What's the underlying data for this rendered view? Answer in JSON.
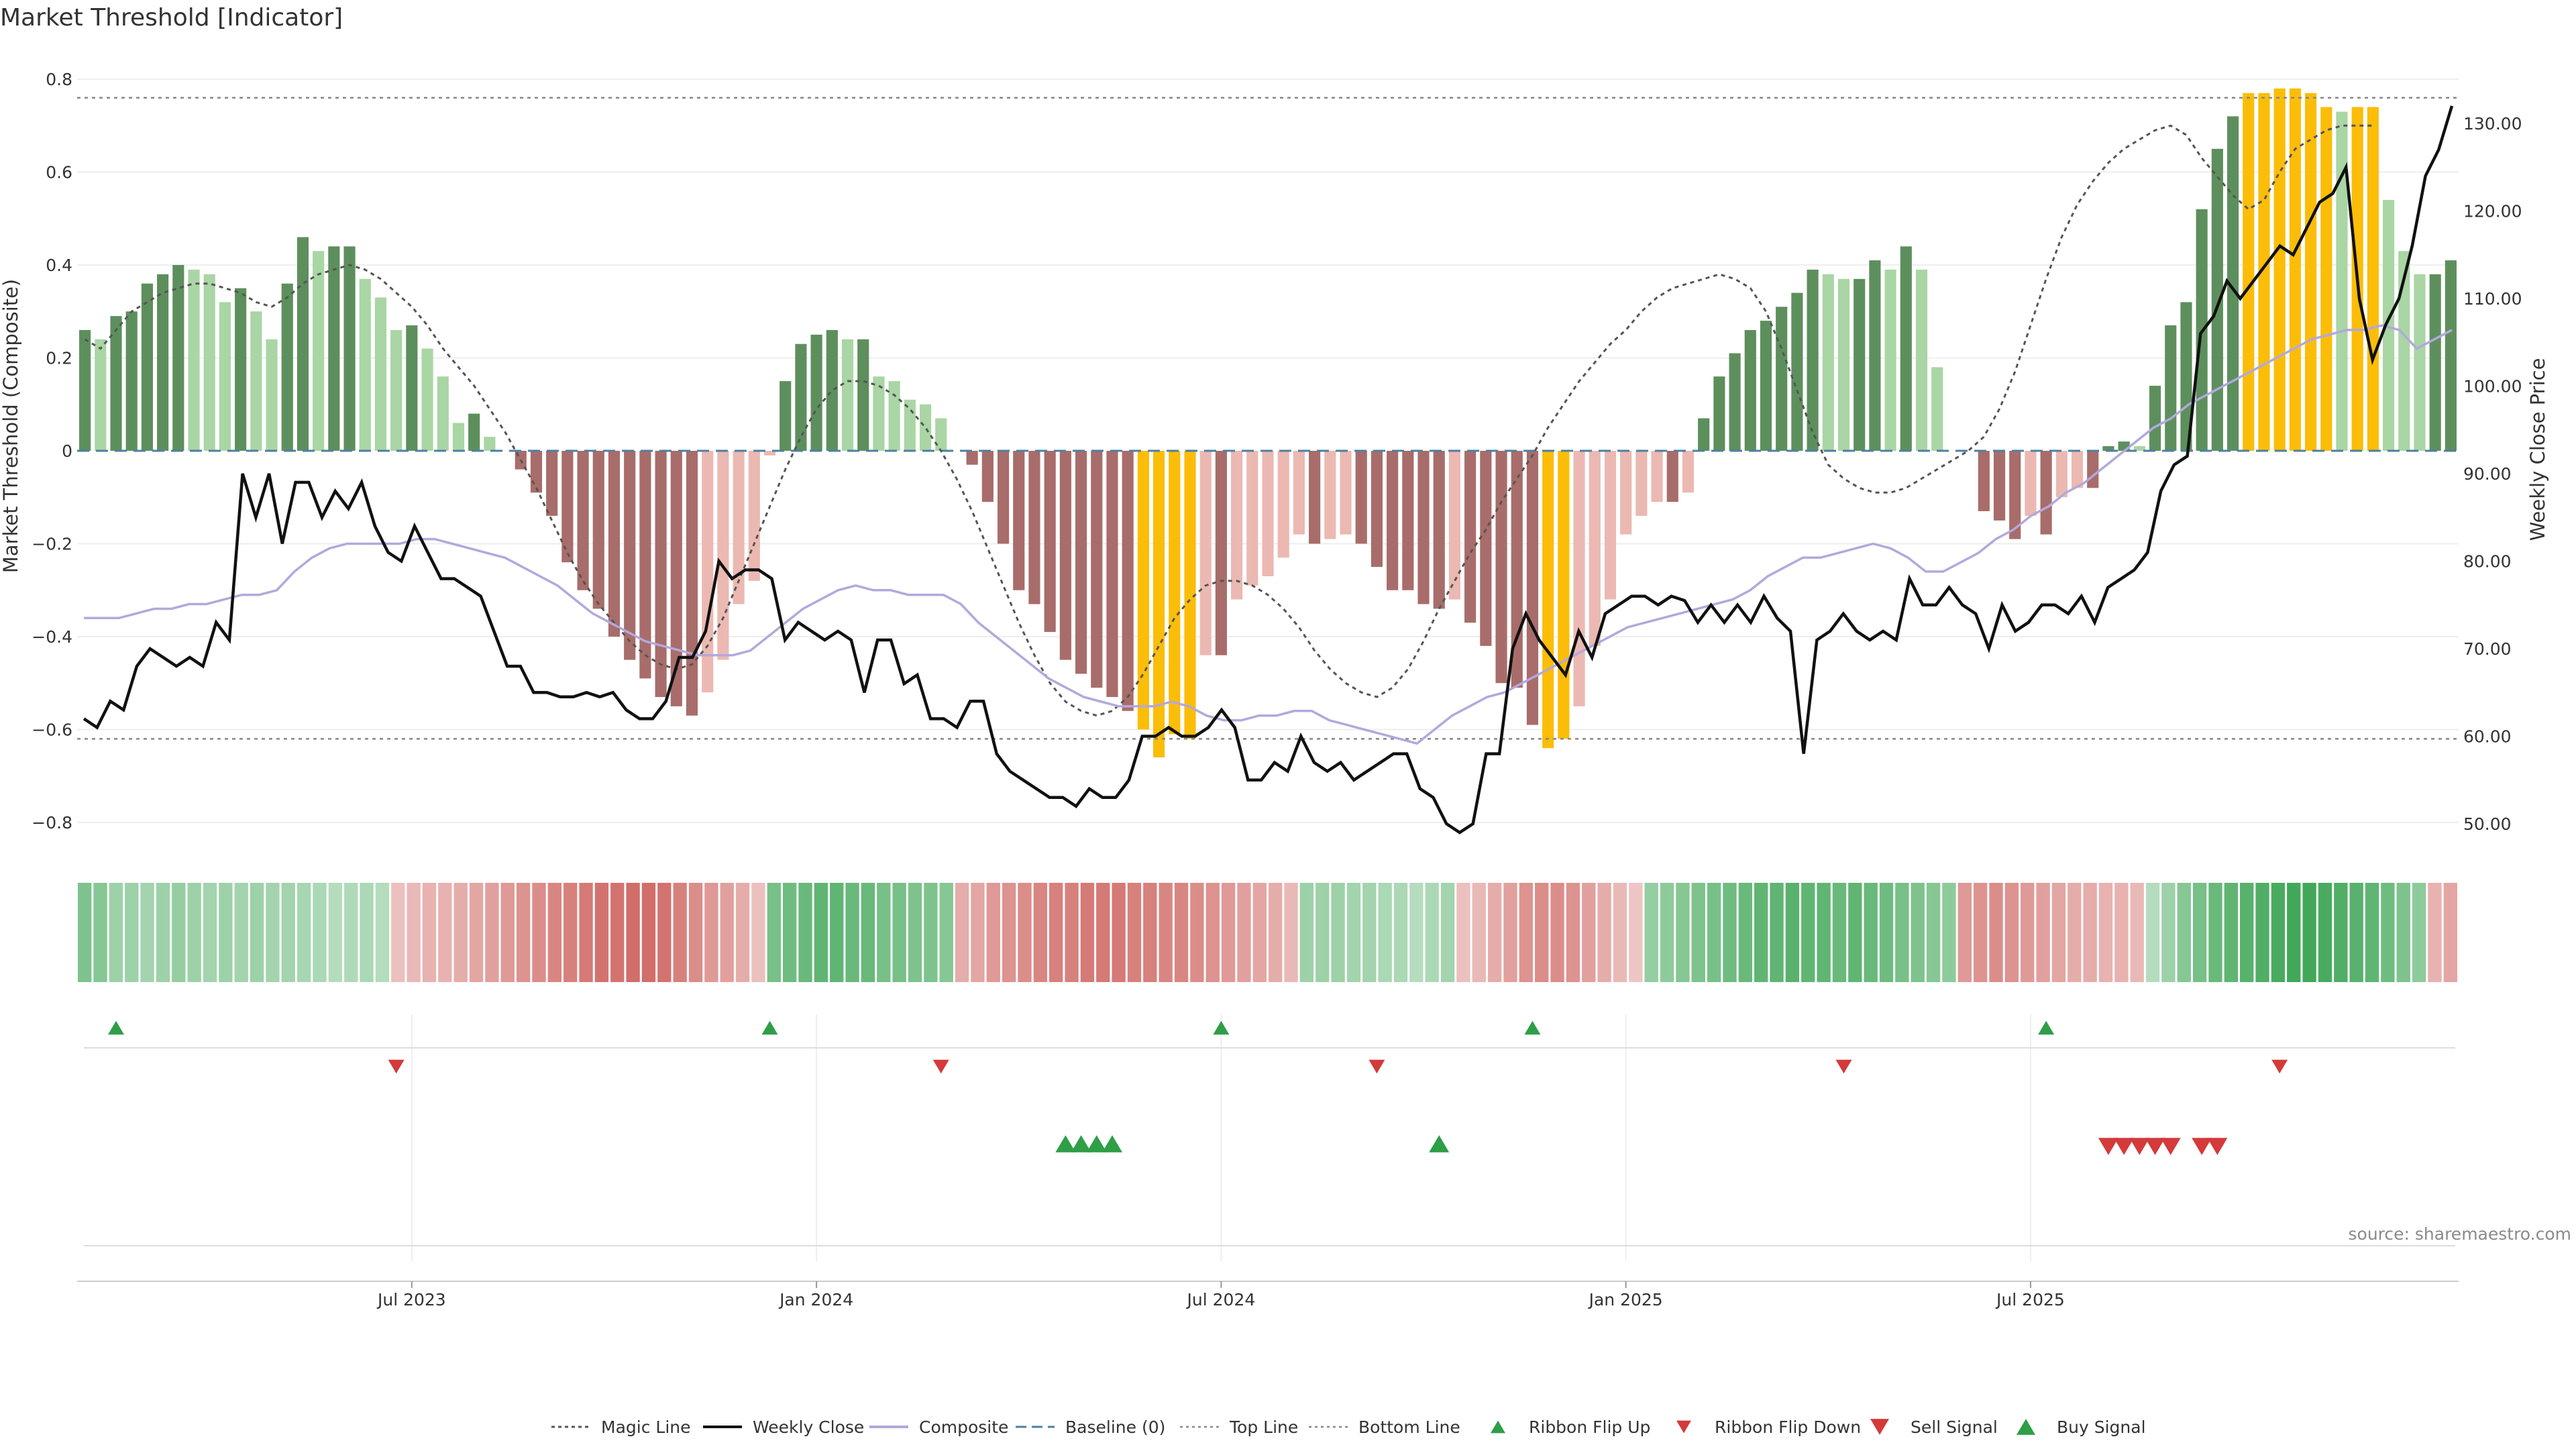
{
  "colors": {
    "bar_pos_strong": "#5d8f5d",
    "bar_pos_light": "#a9d6a4",
    "bar_neg_strong": "#a86d6a",
    "bar_neg_light": "#ebb9b2",
    "bar_extreme": "#fbbd08",
    "close_line": "#111111",
    "composite_line": "#b3a8dc",
    "magic_line": "#555555",
    "baseline": "#4e7fa0",
    "threshold": "#888888",
    "buy": "#2e9e47",
    "sell": "#d43a3a"
  },
  "chart_data": {
    "type": "bar",
    "title": "Market Threshold [Indicator]",
    "ylabel": "Market Threshold (Composite)",
    "y2label": "Weekly Close Price",
    "ylim": [
      -0.8,
      0.8
    ],
    "y2lim": [
      50,
      130
    ],
    "yticks": [
      "−0.8",
      "−0.6",
      "−0.4",
      "−0.2",
      "0",
      "0.2",
      "0.4",
      "0.6",
      "0.8"
    ],
    "y2ticks": [
      "50.00",
      "60.00",
      "70.00",
      "80.00",
      "90.00",
      "100.00",
      "110.00",
      "120.00",
      "130.00"
    ],
    "xticks": [
      "Jul 2023",
      "Jan 2024",
      "Jul 2024",
      "Jan 2025",
      "Jul 2025"
    ],
    "top_line": 0.76,
    "bottom_line": -0.62,
    "baseline": 0,
    "composite": [
      0.26,
      0.24,
      0.29,
      0.3,
      0.36,
      0.38,
      0.4,
      0.39,
      0.38,
      0.32,
      0.35,
      0.3,
      0.24,
      0.36,
      0.46,
      0.43,
      0.44,
      0.44,
      0.37,
      0.33,
      0.26,
      0.27,
      0.22,
      0.16,
      0.06,
      0.08,
      0.03,
      0,
      -0.04,
      -0.09,
      -0.14,
      -0.24,
      -0.3,
      -0.34,
      -0.4,
      -0.45,
      -0.49,
      -0.53,
      -0.55,
      -0.57,
      -0.52,
      -0.45,
      -0.33,
      -0.28,
      -0.01,
      0.15,
      0.23,
      0.25,
      0.26,
      0.24,
      0.24,
      0.16,
      0.15,
      0.11,
      0.1,
      0.07,
      0,
      -0.03,
      -0.11,
      -0.2,
      -0.3,
      -0.33,
      -0.39,
      -0.45,
      -0.48,
      -0.51,
      -0.53,
      -0.56,
      -0.6,
      -0.66,
      -0.61,
      -0.62,
      -0.44,
      -0.44,
      -0.32,
      -0.29,
      -0.27,
      -0.23,
      -0.18,
      -0.2,
      -0.19,
      -0.18,
      -0.2,
      -0.25,
      -0.3,
      -0.3,
      -0.33,
      -0.34,
      -0.32,
      -0.37,
      -0.42,
      -0.5,
      -0.51,
      -0.59,
      -0.64,
      -0.62,
      -0.55,
      -0.42,
      -0.32,
      -0.18,
      -0.14,
      -0.11,
      -0.11,
      -0.09,
      0.07,
      0.16,
      0.21,
      0.26,
      0.28,
      0.31,
      0.34,
      0.39,
      0.38,
      0.37,
      0.37,
      0.41,
      0.39,
      0.44,
      0.39,
      0.18,
      0,
      0,
      -0.13,
      -0.15,
      -0.19,
      -0.14,
      -0.18,
      -0.1,
      -0.08,
      -0.08,
      0.01,
      0.02,
      0.01,
      0.14,
      0.27,
      0.32,
      0.52,
      0.65,
      0.72,
      0.77,
      0.77,
      0.78,
      0.78,
      0.77,
      0.74,
      0.73,
      0.74,
      0.74,
      0.54,
      0.43,
      0.38,
      0.38,
      0.41
    ],
    "magic_line": [
      0.24,
      0.22,
      0.26,
      0.3,
      0.32,
      0.34,
      0.35,
      0.36,
      0.36,
      0.35,
      0.34,
      0.32,
      0.31,
      0.33,
      0.36,
      0.38,
      0.39,
      0.4,
      0.39,
      0.37,
      0.34,
      0.31,
      0.27,
      0.22,
      0.18,
      0.14,
      0.09,
      0.04,
      -0.02,
      -0.08,
      -0.15,
      -0.22,
      -0.28,
      -0.33,
      -0.37,
      -0.41,
      -0.44,
      -0.46,
      -0.47,
      -0.46,
      -0.42,
      -0.36,
      -0.28,
      -0.2,
      -0.12,
      -0.04,
      0.03,
      0.09,
      0.13,
      0.15,
      0.15,
      0.14,
      0.12,
      0.09,
      0.05,
      0,
      -0.06,
      -0.13,
      -0.21,
      -0.29,
      -0.37,
      -0.44,
      -0.5,
      -0.54,
      -0.56,
      -0.57,
      -0.56,
      -0.53,
      -0.48,
      -0.42,
      -0.36,
      -0.32,
      -0.29,
      -0.28,
      -0.28,
      -0.29,
      -0.31,
      -0.34,
      -0.38,
      -0.43,
      -0.47,
      -0.5,
      -0.52,
      -0.53,
      -0.51,
      -0.47,
      -0.41,
      -0.34,
      -0.28,
      -0.22,
      -0.17,
      -0.11,
      -0.06,
      -0.01,
      0.05,
      0.1,
      0.15,
      0.19,
      0.23,
      0.26,
      0.3,
      0.33,
      0.35,
      0.36,
      0.37,
      0.38,
      0.37,
      0.35,
      0.3,
      0.22,
      0.13,
      0.04,
      -0.03,
      -0.06,
      -0.08,
      -0.09,
      -0.09,
      -0.08,
      -0.06,
      -0.04,
      -0.02,
      0,
      0.03,
      0.09,
      0.17,
      0.27,
      0.37,
      0.46,
      0.53,
      0.58,
      0.62,
      0.65,
      0.67,
      0.69,
      0.7,
      0.68,
      0.63,
      0.59,
      0.55,
      0.52,
      0.54,
      0.6,
      0.65,
      0.67,
      0.69,
      0.7,
      0.7,
      0.7
    ],
    "weekly_close": [
      62,
      61,
      64,
      63,
      68,
      70,
      69,
      68,
      69,
      68,
      73,
      71,
      90,
      85,
      90,
      82,
      89,
      89,
      85,
      88,
      86,
      89,
      84,
      81,
      80,
      84,
      81,
      78,
      78,
      77,
      76,
      72,
      68,
      68,
      65,
      65,
      64.5,
      64.5,
      65,
      64.5,
      65,
      63,
      62,
      62,
      64,
      69,
      69,
      72,
      80,
      78,
      79,
      79,
      78,
      71,
      73,
      72,
      71,
      72,
      71,
      65,
      71,
      71,
      66,
      67,
      62,
      62,
      61,
      64,
      64,
      58,
      56,
      55,
      54,
      53,
      53,
      52,
      54,
      53,
      53,
      55,
      60,
      60,
      61,
      60,
      60,
      61,
      63,
      61,
      55,
      55,
      57,
      56,
      60,
      57,
      56,
      57,
      55,
      56,
      57,
      58,
      58,
      54,
      53,
      50,
      49,
      50,
      58,
      58,
      70,
      74,
      71,
      69,
      67,
      72,
      69,
      74,
      75,
      76,
      76,
      75,
      76,
      75.5,
      73,
      75,
      73,
      75,
      73,
      76,
      73.5,
      72,
      58,
      71,
      72,
      74,
      72,
      71,
      72,
      71,
      78,
      75,
      75,
      77,
      75,
      74,
      70,
      75,
      72,
      73,
      75,
      75,
      74,
      76,
      73,
      77,
      78,
      79,
      81,
      88,
      91,
      92,
      106,
      108,
      112,
      110,
      112,
      114,
      116,
      115,
      118,
      121,
      122,
      125,
      110,
      103,
      107,
      110,
      116,
      124,
      127,
      132
    ],
    "composite_ma": [
      -0.36,
      -0.36,
      -0.36,
      -0.35,
      -0.34,
      -0.34,
      -0.33,
      -0.33,
      -0.32,
      -0.31,
      -0.31,
      -0.3,
      -0.26,
      -0.23,
      -0.21,
      -0.2,
      -0.2,
      -0.2,
      -0.2,
      -0.19,
      -0.19,
      -0.2,
      -0.21,
      -0.22,
      -0.23,
      -0.25,
      -0.27,
      -0.29,
      -0.32,
      -0.35,
      -0.37,
      -0.39,
      -0.41,
      -0.42,
      -0.43,
      -0.44,
      -0.44,
      -0.44,
      -0.43,
      -0.4,
      -0.37,
      -0.34,
      -0.32,
      -0.3,
      -0.29,
      -0.3,
      -0.3,
      -0.31,
      -0.31,
      -0.31,
      -0.33,
      -0.37,
      -0.4,
      -0.43,
      -0.46,
      -0.49,
      -0.51,
      -0.53,
      -0.54,
      -0.55,
      -0.55,
      -0.55,
      -0.54,
      -0.55,
      -0.57,
      -0.58,
      -0.58,
      -0.57,
      -0.57,
      -0.56,
      -0.56,
      -0.58,
      -0.59,
      -0.6,
      -0.61,
      -0.62,
      -0.63,
      -0.6,
      -0.57,
      -0.55,
      -0.53,
      -0.52,
      -0.5,
      -0.48,
      -0.46,
      -0.44,
      -0.42,
      -0.4,
      -0.38,
      -0.37,
      -0.36,
      -0.35,
      -0.34,
      -0.33,
      -0.32,
      -0.3,
      -0.27,
      -0.25,
      -0.23,
      -0.23,
      -0.22,
      -0.21,
      -0.2,
      -0.21,
      -0.23,
      -0.26,
      -0.26,
      -0.24,
      -0.22,
      -0.19,
      -0.17,
      -0.14,
      -0.12,
      -0.09,
      -0.07,
      -0.04,
      -0.01,
      0.02,
      0.05,
      0.07,
      0.1,
      0.12,
      0.14,
      0.16,
      0.18,
      0.2,
      0.22,
      0.24,
      0.25,
      0.26,
      0.26,
      0.27,
      0.26,
      0.22,
      0.24,
      0.26
    ],
    "ribbon": [
      0.55,
      0.5,
      0.35,
      0.35,
      0.3,
      0.35,
      0.4,
      0.35,
      0.3,
      0.35,
      0.3,
      0.35,
      0.3,
      0.3,
      0.28,
      0.25,
      0.2,
      0.22,
      0.25,
      0.2,
      -0.2,
      -0.25,
      -0.3,
      -0.3,
      -0.35,
      -0.4,
      -0.45,
      -0.5,
      -0.55,
      -0.6,
      -0.65,
      -0.7,
      -0.75,
      -0.8,
      -0.8,
      -0.85,
      -0.85,
      -0.8,
      -0.7,
      -0.6,
      -0.5,
      -0.45,
      -0.35,
      -0.2,
      0.6,
      0.65,
      0.7,
      0.75,
      0.75,
      0.7,
      0.7,
      0.6,
      0.6,
      0.55,
      0.55,
      0.5,
      -0.35,
      -0.4,
      -0.5,
      -0.55,
      -0.6,
      -0.65,
      -0.7,
      -0.7,
      -0.75,
      -0.75,
      -0.75,
      -0.7,
      -0.7,
      -0.65,
      -0.65,
      -0.6,
      -0.55,
      -0.5,
      -0.45,
      -0.4,
      -0.35,
      -0.25,
      0.35,
      0.35,
      0.35,
      0.3,
      0.3,
      0.25,
      0.25,
      0.2,
      0.25,
      0.3,
      -0.2,
      -0.25,
      -0.35,
      -0.45,
      -0.55,
      -0.6,
      -0.6,
      -0.55,
      -0.45,
      -0.35,
      -0.25,
      -0.15,
      0.4,
      0.45,
      0.5,
      0.55,
      0.6,
      0.65,
      0.7,
      0.75,
      0.75,
      0.8,
      0.75,
      0.75,
      0.7,
      0.75,
      0.7,
      0.65,
      0.6,
      0.55,
      0.5,
      0.45,
      -0.5,
      -0.55,
      -0.6,
      -0.55,
      -0.5,
      -0.45,
      -0.4,
      -0.35,
      -0.35,
      -0.3,
      -0.3,
      -0.25,
      0.2,
      0.35,
      0.5,
      0.6,
      0.7,
      0.75,
      0.8,
      0.85,
      0.9,
      0.95,
      0.95,
      0.9,
      0.85,
      0.8,
      0.75,
      0.65,
      0.55,
      0.45,
      -0.3,
      -0.4
    ],
    "ribbon_flip_up": [
      2,
      44,
      73,
      93,
      126
    ],
    "ribbon_flip_down": [
      20,
      55,
      83,
      113,
      141
    ],
    "buy_signal": [
      63,
      64,
      65,
      66,
      87
    ],
    "sell_signal": [
      130,
      131,
      132,
      133,
      134,
      136,
      137
    ],
    "x_tick_index": [
      21,
      47,
      73,
      99,
      125
    ]
  },
  "legend": [
    {
      "label": "Magic Line",
      "icon": "dotted-line"
    },
    {
      "label": "Weekly Close",
      "icon": "solid-line"
    },
    {
      "label": "Composite",
      "icon": "solid-line-lavender"
    },
    {
      "label": "Baseline (0)",
      "icon": "dashed-line"
    },
    {
      "label": "Top Line",
      "icon": "dotted-line-light"
    },
    {
      "label": "Bottom Line",
      "icon": "dotted-line-light"
    },
    {
      "label": "Ribbon Flip Up",
      "icon": "triangle-up-green"
    },
    {
      "label": "Ribbon Flip Down",
      "icon": "triangle-down-red"
    },
    {
      "label": "Sell Signal",
      "icon": "triangle-down-red-large"
    },
    {
      "label": "Buy Signal",
      "icon": "triangle-up-green-large"
    }
  ],
  "source": "source: sharemaestro.com"
}
